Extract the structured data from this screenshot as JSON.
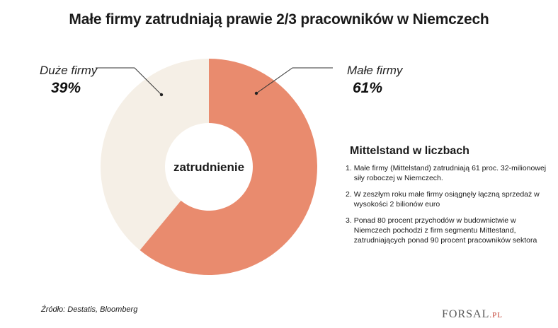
{
  "title": "Małe firmy zatrudniają prawie 2/3 pracowników w Niemczech",
  "chart_data": {
    "type": "pie",
    "style": "donut",
    "center_label": "zatrudnienie",
    "slices": [
      {
        "name": "Małe firmy",
        "value": 61,
        "label": "61%",
        "color": "#e98b6e"
      },
      {
        "name": "Duże firmy",
        "value": 39,
        "label": "39%",
        "color": "#f5efe6"
      }
    ]
  },
  "panel": {
    "title": "Mittelstand w liczbach",
    "items": [
      {
        "num": "1.",
        "text": "Małe firmy (Mittelstand) zatrudniają 61 proc. 32-milionowej siły roboczej w Niemczech."
      },
      {
        "num": "2.",
        "text": "W zeszłym roku małe firmy osiągnęły łączną sprzedaż w wysokości 2 bilionów euro"
      },
      {
        "num": "3.",
        "text": "Ponad 80 procent przychodów w budownictwie w Niemczech pochodzi z firm segmentu Mittestand, zatrudniających ponad 90 procent pracowników sektora"
      }
    ]
  },
  "source": "Źródło: Destatis, Bloomberg",
  "logo": {
    "brand": "FORSAL",
    "domain": ".PL"
  }
}
